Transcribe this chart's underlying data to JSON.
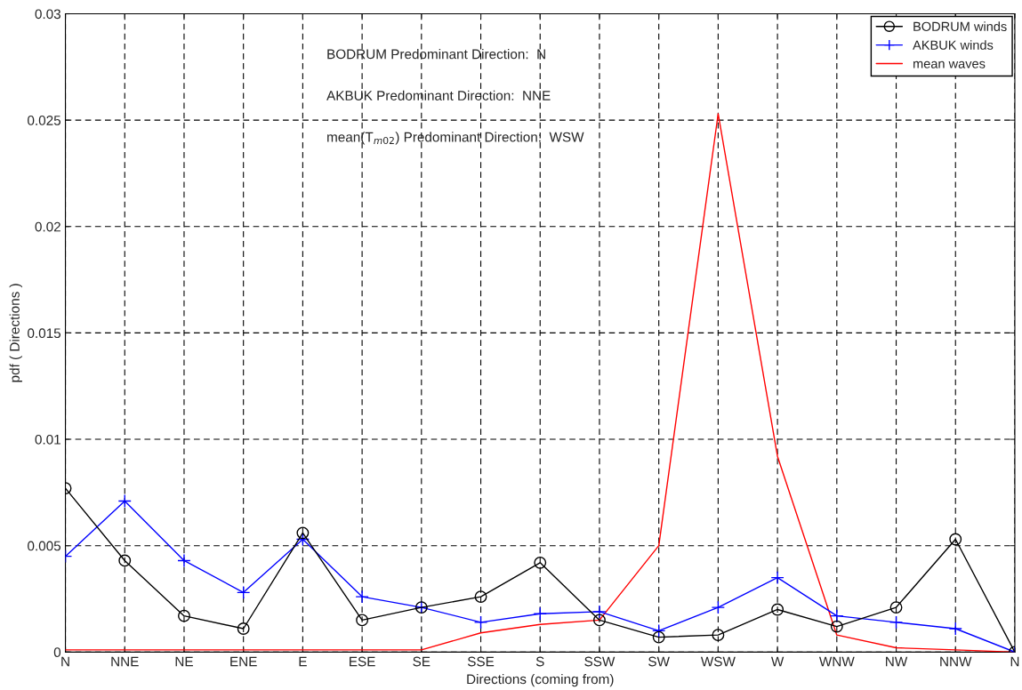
{
  "chart_data": {
    "type": "line",
    "xlabel": "Directions (coming from)",
    "ylabel": "pdf ( Directions )",
    "categories": [
      "N",
      "NNE",
      "NE",
      "ENE",
      "E",
      "ESE",
      "SE",
      "SSE",
      "S",
      "SSW",
      "SW",
      "WSW",
      "W",
      "WNW",
      "NW",
      "NNW",
      "N"
    ],
    "series": [
      {
        "name": "BODRUM winds",
        "color": "#000000",
        "marker": "circle",
        "values": [
          0.0077,
          0.0043,
          0.0017,
          0.0011,
          0.0056,
          0.0015,
          0.0021,
          0.0026,
          0.0042,
          0.0015,
          0.0007,
          0.0008,
          0.002,
          0.0012,
          0.0021,
          0.0053,
          0
        ]
      },
      {
        "name": "AKBUK winds",
        "color": "#0000ff",
        "marker": "cross",
        "values": [
          0.0045,
          0.0071,
          0.0043,
          0.0028,
          0.0053,
          0.0026,
          0.0021,
          0.0014,
          0.0018,
          0.0019,
          0.001,
          0.0021,
          0.0035,
          0.0017,
          0.0014,
          0.0011,
          0
        ]
      },
      {
        "name": "mean waves",
        "color": "#ff0000",
        "marker": "none",
        "values": [
          0.0001,
          0.0001,
          0.0001,
          0.0001,
          0.0001,
          0.0001,
          0.0001,
          0.0009,
          0.0013,
          0.0015,
          0.005,
          0.0253,
          0.0092,
          0.0008,
          0.0002,
          0.0001,
          0
        ]
      }
    ],
    "ylim": [
      0,
      0.03
    ],
    "yticks": [
      0,
      0.005,
      0.01,
      0.015,
      0.02,
      0.025,
      0.03
    ],
    "grid": true,
    "legend": "top right",
    "annotations": [
      "BODRUM Predominant Direction:  N",
      "AKBUK Predominant Direction:  NNE",
      "mean(T$_{m02}$) Predominant Direction:  WSW"
    ]
  }
}
